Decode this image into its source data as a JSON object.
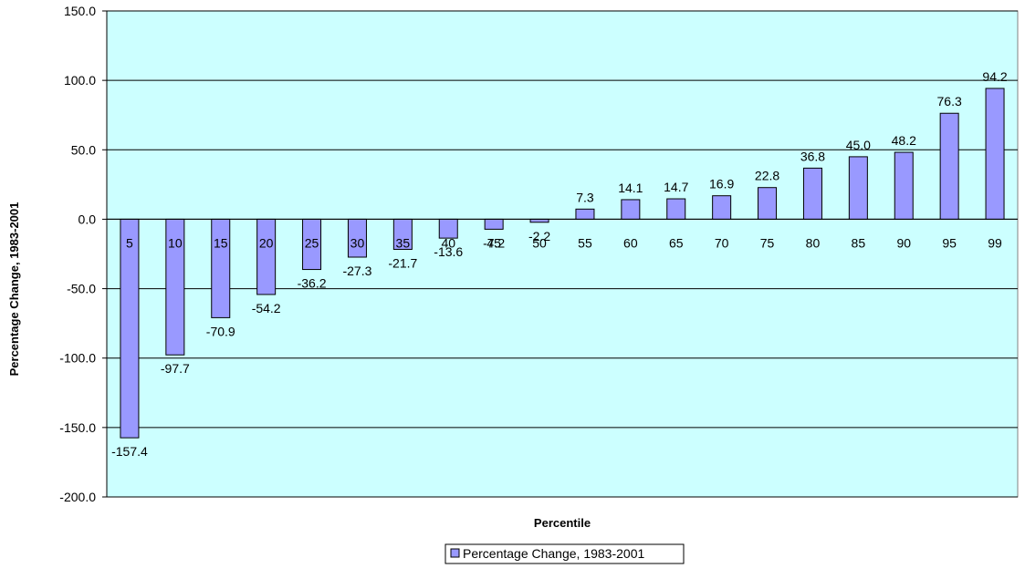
{
  "chart_data": {
    "type": "bar",
    "title": "",
    "xlabel": "Percentile",
    "ylabel": "Percentage Change, 1983-2001",
    "ylim": [
      -200,
      150
    ],
    "yticks": [
      150,
      100,
      50,
      0,
      -50,
      -100,
      -150,
      -200
    ],
    "ytick_labels": [
      "150.0",
      "100.0",
      "50.0",
      "0.0",
      "-50.0",
      "-100.0",
      "-150.0",
      "-200.0"
    ],
    "grid": true,
    "legend_position": "bottom-center",
    "categories": [
      "5",
      "10",
      "15",
      "20",
      "25",
      "30",
      "35",
      "40",
      "45",
      "50",
      "55",
      "60",
      "65",
      "70",
      "75",
      "80",
      "85",
      "90",
      "95",
      "99"
    ],
    "series": [
      {
        "name": "Percentage Change, 1983-2001",
        "values": [
          -157.4,
          -97.7,
          -70.9,
          -54.2,
          -36.2,
          -27.3,
          -21.7,
          -13.6,
          -7.2,
          -2.2,
          7.3,
          14.1,
          14.7,
          16.9,
          22.8,
          36.8,
          45.0,
          48.2,
          76.3,
          94.2
        ],
        "value_labels": [
          "-157.4",
          "-97.7",
          "-70.9",
          "-54.2",
          "-36.2",
          "-27.3",
          "-21.7",
          "-13.6",
          "-7.2",
          "-2.2",
          "7.3",
          "14.1",
          "14.7",
          "16.9",
          "22.8",
          "36.8",
          "45.0",
          "48.2",
          "76.3",
          "94.2"
        ]
      }
    ],
    "colors": {
      "plot_background": "#ccffff",
      "bar_fill": "#9999ff",
      "bar_stroke": "#000000",
      "grid": "#000000"
    }
  }
}
